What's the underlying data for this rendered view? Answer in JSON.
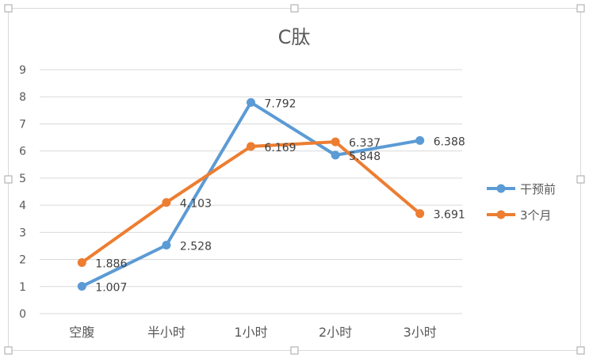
{
  "chart_data": {
    "type": "line",
    "title": "C肽",
    "xlabel": "",
    "ylabel": "",
    "categories": [
      "空腹",
      "半小时",
      "1小时",
      "2小时",
      "3小时"
    ],
    "ylim": [
      0,
      9
    ],
    "yticks": [
      "0",
      "1",
      "2",
      "3",
      "4",
      "5",
      "6",
      "7",
      "8",
      "9"
    ],
    "grid": true,
    "legend_position": "right",
    "series": [
      {
        "name": "干预前",
        "color": "#5B9BD5",
        "values": [
          1.007,
          2.528,
          7.792,
          5.848,
          6.388
        ],
        "labels": [
          "1.007",
          "2.528",
          "7.792",
          "5.848",
          "6.388"
        ]
      },
      {
        "name": "3个月",
        "color": "#ED7D31",
        "values": [
          1.886,
          4.103,
          6.169,
          6.337,
          3.691
        ],
        "labels": [
          "1.886",
          "4.103",
          "6.169",
          "6.337",
          "3.691"
        ]
      }
    ]
  }
}
